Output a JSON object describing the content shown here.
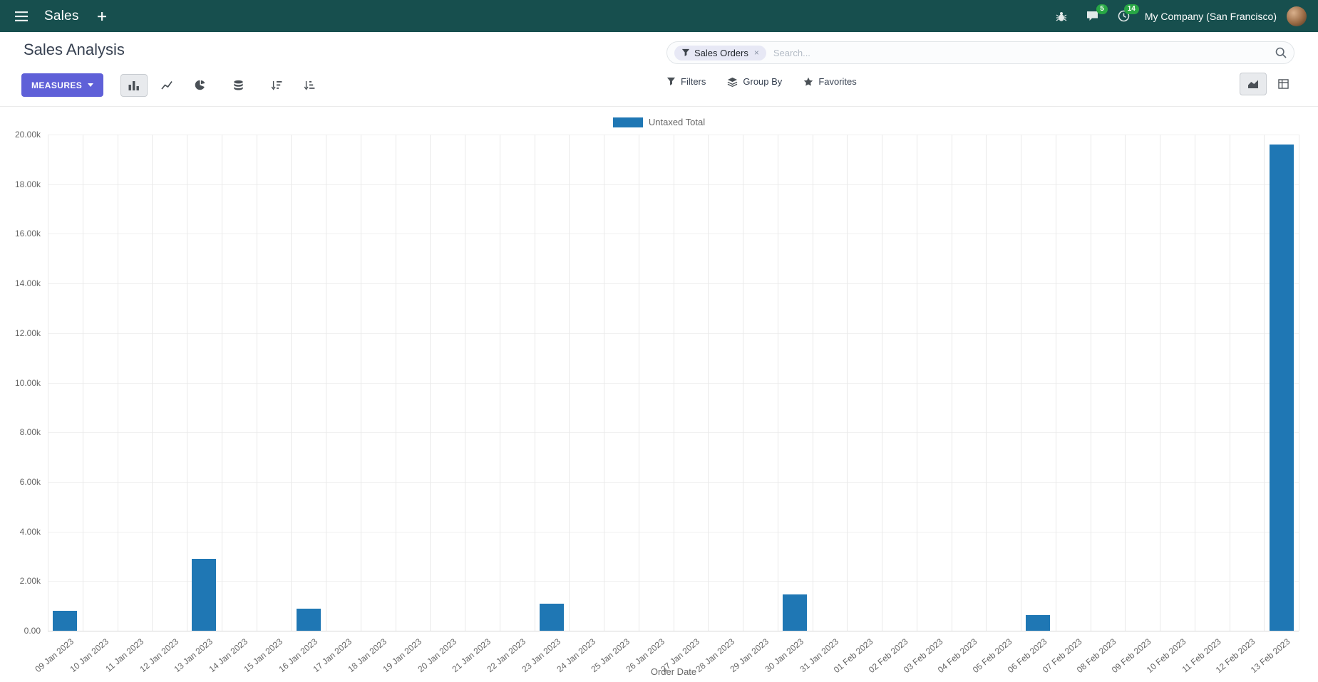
{
  "colors": {
    "navbar_bg": "#174f4e",
    "primary": "#5f60d8",
    "bar": "#1f77b4",
    "badge_green": "#28a745",
    "active_btn_bg": "#e8eaed"
  },
  "navbar": {
    "app_name": "Sales",
    "messages_badge": "5",
    "activities_badge": "14",
    "company": "My Company (San Francisco)"
  },
  "control_panel": {
    "title": "Sales Analysis",
    "measures_label": "MEASURES",
    "filters_label": "Filters",
    "group_by_label": "Group By",
    "favorites_label": "Favorites",
    "search": {
      "facet": "Sales Orders",
      "facet_remove": "×",
      "placeholder": "Search..."
    }
  },
  "chart_data": {
    "type": "bar",
    "title": "",
    "xlabel": "Order Date",
    "ylabel": "",
    "ylim": [
      0,
      20000
    ],
    "grid": true,
    "legend_position": "top",
    "legend": [
      {
        "label": "Untaxed Total",
        "color": "#1f77b4"
      }
    ],
    "y_ticks": [
      {
        "v": 0,
        "label": "0.00"
      },
      {
        "v": 2000,
        "label": "2.00k"
      },
      {
        "v": 4000,
        "label": "4.00k"
      },
      {
        "v": 6000,
        "label": "6.00k"
      },
      {
        "v": 8000,
        "label": "8.00k"
      },
      {
        "v": 10000,
        "label": "10.00k"
      },
      {
        "v": 12000,
        "label": "12.00k"
      },
      {
        "v": 14000,
        "label": "14.00k"
      },
      {
        "v": 16000,
        "label": "16.00k"
      },
      {
        "v": 18000,
        "label": "18.00k"
      },
      {
        "v": 20000,
        "label": "20.00k"
      }
    ],
    "categories": [
      "09 Jan 2023",
      "10 Jan 2023",
      "11 Jan 2023",
      "12 Jan 2023",
      "13 Jan 2023",
      "14 Jan 2023",
      "15 Jan 2023",
      "16 Jan 2023",
      "17 Jan 2023",
      "18 Jan 2023",
      "19 Jan 2023",
      "20 Jan 2023",
      "21 Jan 2023",
      "22 Jan 2023",
      "23 Jan 2023",
      "24 Jan 2023",
      "25 Jan 2023",
      "26 Jan 2023",
      "27 Jan 2023",
      "28 Jan 2023",
      "29 Jan 2023",
      "30 Jan 2023",
      "31 Jan 2023",
      "01 Feb 2023",
      "02 Feb 2023",
      "03 Feb 2023",
      "04 Feb 2023",
      "05 Feb 2023",
      "06 Feb 2023",
      "07 Feb 2023",
      "08 Feb 2023",
      "09 Feb 2023",
      "10 Feb 2023",
      "11 Feb 2023",
      "12 Feb 2023",
      "13 Feb 2023"
    ],
    "values": [
      800,
      0,
      0,
      0,
      2900,
      0,
      0,
      900,
      0,
      0,
      0,
      0,
      0,
      0,
      1080,
      0,
      0,
      0,
      0,
      0,
      0,
      1450,
      0,
      0,
      0,
      0,
      0,
      0,
      620,
      0,
      0,
      0,
      0,
      0,
      0,
      19600
    ]
  }
}
